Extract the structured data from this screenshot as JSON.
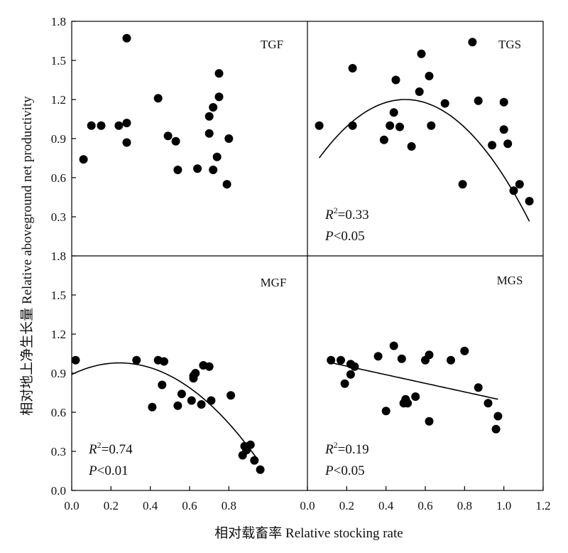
{
  "chart_data": {
    "type": "scatter",
    "xlabel": "相对载畜率 Relative stocking rate",
    "ylabel": "相对地上净生长量 Relative aboveground net productivity",
    "x_ticks_left": [
      "0.0",
      "0.2",
      "0.4",
      "0.6",
      "0.8"
    ],
    "x_ticks_right": [
      "0.0",
      "0.2",
      "0.4",
      "0.6",
      "0.8",
      "1.0",
      "1.2"
    ],
    "y_ticks_top": [
      "0.3",
      "0.6",
      "0.9",
      "1.2",
      "1.5",
      "1.8"
    ],
    "y_ticks_bottom": [
      "0.0",
      "0.3",
      "0.6",
      "0.9",
      "1.2",
      "1.5",
      "1.8"
    ],
    "panels": [
      {
        "id": "TGF",
        "label": "TGF",
        "xlim": [
          0,
          1.2
        ],
        "ylim": [
          0,
          1.8
        ],
        "points": [
          [
            0.06,
            0.74
          ],
          [
            0.1,
            1.0
          ],
          [
            0.15,
            1.0
          ],
          [
            0.24,
            1.0
          ],
          [
            0.28,
            1.02
          ],
          [
            0.28,
            0.87
          ],
          [
            0.28,
            1.67
          ],
          [
            0.44,
            1.21
          ],
          [
            0.49,
            0.92
          ],
          [
            0.53,
            0.88
          ],
          [
            0.54,
            0.66
          ],
          [
            0.64,
            0.67
          ],
          [
            0.7,
            1.07
          ],
          [
            0.7,
            0.94
          ],
          [
            0.72,
            1.14
          ],
          [
            0.72,
            0.66
          ],
          [
            0.74,
            0.76
          ],
          [
            0.75,
            1.4
          ],
          [
            0.75,
            1.22
          ],
          [
            0.79,
            0.55
          ],
          [
            0.8,
            0.9
          ]
        ],
        "fit": null,
        "r2": "",
        "p": ""
      },
      {
        "id": "TGS",
        "label": "TGS",
        "xlim": [
          0,
          1.2
        ],
        "ylim": [
          0,
          1.8
        ],
        "points": [
          [
            0.06,
            1.0
          ],
          [
            0.23,
            1.44
          ],
          [
            0.23,
            1.0
          ],
          [
            0.39,
            0.89
          ],
          [
            0.42,
            1.0
          ],
          [
            0.44,
            1.1
          ],
          [
            0.45,
            1.35
          ],
          [
            0.47,
            0.99
          ],
          [
            0.53,
            0.84
          ],
          [
            0.57,
            1.26
          ],
          [
            0.58,
            1.55
          ],
          [
            0.62,
            1.38
          ],
          [
            0.63,
            1.0
          ],
          [
            0.7,
            1.17
          ],
          [
            0.79,
            0.55
          ],
          [
            0.84,
            1.64
          ],
          [
            0.87,
            1.19
          ],
          [
            0.94,
            0.85
          ],
          [
            1.0,
            1.18
          ],
          [
            1.0,
            0.97
          ],
          [
            1.02,
            0.86
          ],
          [
            1.05,
            0.5
          ],
          [
            1.08,
            0.55
          ],
          [
            1.13,
            0.42
          ]
        ],
        "fit": {
          "type": "quadratic",
          "a": -2.34,
          "b": 2.33,
          "c": 0.62,
          "x_range": [
            0.06,
            1.13
          ]
        },
        "r2": "=0.33",
        "p": "<0.05"
      },
      {
        "id": "MGF",
        "label": "MGF",
        "xlim": [
          0,
          1.2
        ],
        "ylim": [
          0,
          1.8
        ],
        "points": [
          [
            0.02,
            1.0
          ],
          [
            0.33,
            1.0
          ],
          [
            0.41,
            0.64
          ],
          [
            0.44,
            1.0
          ],
          [
            0.46,
            0.81
          ],
          [
            0.47,
            0.99
          ],
          [
            0.54,
            0.65
          ],
          [
            0.56,
            0.74
          ],
          [
            0.61,
            0.69
          ],
          [
            0.62,
            0.86
          ],
          [
            0.62,
            0.88
          ],
          [
            0.63,
            0.9
          ],
          [
            0.66,
            0.66
          ],
          [
            0.67,
            0.96
          ],
          [
            0.7,
            0.95
          ],
          [
            0.71,
            0.69
          ],
          [
            0.81,
            0.73
          ],
          [
            0.87,
            0.27
          ],
          [
            0.88,
            0.34
          ],
          [
            0.89,
            0.31
          ],
          [
            0.91,
            0.35
          ],
          [
            0.93,
            0.23
          ],
          [
            0.96,
            0.16
          ]
        ],
        "fit": {
          "type": "quadratic",
          "a": -1.5,
          "b": 0.73,
          "c": 0.89,
          "x_range": [
            0.0,
            0.94
          ]
        },
        "r2": "=0.74",
        "p": "<0.01"
      },
      {
        "id": "MGS",
        "label": "MGS",
        "xlim": [
          0,
          1.2
        ],
        "ylim": [
          0,
          1.8
        ],
        "points": [
          [
            0.12,
            1.0
          ],
          [
            0.17,
            1.0
          ],
          [
            0.19,
            0.82
          ],
          [
            0.22,
            0.97
          ],
          [
            0.22,
            0.89
          ],
          [
            0.24,
            0.95
          ],
          [
            0.36,
            1.03
          ],
          [
            0.4,
            0.61
          ],
          [
            0.44,
            1.11
          ],
          [
            0.48,
            1.01
          ],
          [
            0.49,
            0.67
          ],
          [
            0.5,
            0.7
          ],
          [
            0.51,
            0.67
          ],
          [
            0.55,
            0.72
          ],
          [
            0.6,
            1.0
          ],
          [
            0.62,
            1.04
          ],
          [
            0.62,
            0.53
          ],
          [
            0.73,
            1.0
          ],
          [
            0.8,
            1.07
          ],
          [
            0.87,
            0.79
          ],
          [
            0.92,
            0.67
          ],
          [
            0.96,
            0.47
          ],
          [
            0.97,
            0.57
          ]
        ],
        "fit": {
          "type": "linear",
          "m": -0.33,
          "b": 1.02,
          "x_range": [
            0.11,
            0.97
          ]
        },
        "r2": "=0.19",
        "p": "<0.05"
      }
    ]
  }
}
